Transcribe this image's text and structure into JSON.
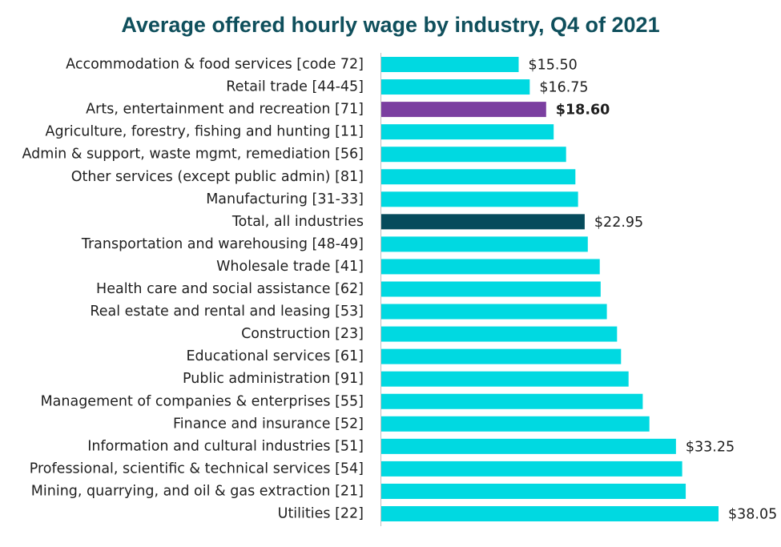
{
  "colors": {
    "default_bar": "#00d9e1",
    "highlight_bar": "#7b3fa0",
    "total_bar": "#064b5c",
    "title": "#0f4f5c",
    "axis": "#bfbfbf",
    "label": "#1f1f1f"
  },
  "chart_data": {
    "type": "bar",
    "orientation": "horizontal",
    "title": "Average offered hourly wage by industry, Q4 of 2021",
    "xlim": [
      0,
      38.05
    ],
    "grid": false,
    "categories": [
      "Accommodation & food services [code 72]",
      "Retail trade [44-45]",
      "Arts, entertainment and recreation [71]",
      "Agriculture, forestry, fishing and hunting [11]",
      "Admin & support, waste mgmt, remediation [56]",
      "Other services (except public admin) [81]",
      "Manufacturing [31-33]",
      "Total, all industries",
      "Transportation and warehousing [48-49]",
      "Wholesale trade [41]",
      "Health care and social assistance [62]",
      "Real estate and rental and leasing [53]",
      "Construction [23]",
      "Educational services [61]",
      "Public administration [91]",
      "Management of companies & enterprises [55]",
      "Finance and insurance [52]",
      "Information and cultural industries [51]",
      "Professional, scientific & technical services [54]",
      "Mining, quarrying, and oil & gas extraction [21]",
      "Utilities [22]"
    ],
    "values": [
      15.5,
      16.75,
      18.6,
      19.45,
      20.85,
      21.9,
      22.2,
      22.95,
      23.3,
      24.65,
      24.75,
      25.45,
      26.6,
      27.05,
      27.9,
      29.5,
      30.25,
      33.25,
      33.95,
      34.35,
      38.05
    ],
    "bar_styles": [
      "default",
      "default",
      "highlight",
      "default",
      "default",
      "default",
      "default",
      "total",
      "default",
      "default",
      "default",
      "default",
      "default",
      "default",
      "default",
      "default",
      "default",
      "default",
      "default",
      "default",
      "default"
    ],
    "data_labels": [
      "$15.50",
      "$16.75",
      "$18.60",
      "",
      "",
      "",
      "",
      "$22.95",
      "",
      "",
      "",
      "",
      "",
      "",
      "",
      "",
      "",
      "$33.25",
      "",
      "",
      "$38.05"
    ]
  }
}
